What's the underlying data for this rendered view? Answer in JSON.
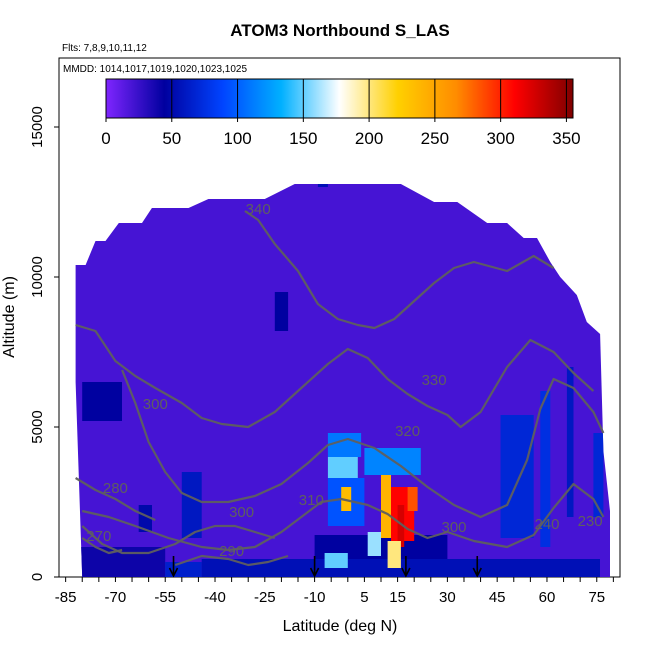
{
  "chart_data": {
    "type": "heatmap",
    "title": "ATOM3 Northbound S_LAS",
    "subtitle": "Flts: 7,8,9,10,11,12",
    "mmdd": "MMDD: 1014,1017,1019,1020,1023,1025",
    "xlabel": "Latitude (deg N)",
    "ylabel": "Altitude (m)",
    "xlim": [
      -87,
      82
    ],
    "ylim": [
      0,
      17300
    ],
    "x_ticks": [
      -85,
      -70,
      -55,
      -40,
      -25,
      -10,
      5,
      15,
      30,
      45,
      60,
      75
    ],
    "x_tick_labels": [
      "-85",
      "-70",
      "-55",
      "-40",
      "-25",
      "-10",
      "5",
      "15",
      "30",
      "45",
      "60",
      "75"
    ],
    "y_ticks": [
      0,
      5000,
      10000,
      15000
    ],
    "y_tick_labels": [
      "0",
      "5000",
      "10000",
      "15000"
    ],
    "colorbar": {
      "ticks": [
        0,
        50,
        100,
        150,
        200,
        250,
        300,
        350
      ],
      "tick_labels": [
        "0",
        "50",
        "100",
        "150",
        "200",
        "250",
        "300",
        "350"
      ],
      "max": 355,
      "colors": [
        "#7f25ff",
        "#00009f",
        "#0044ff",
        "#00b0ff",
        "#ffffff",
        "#ffd000",
        "#ff8c00",
        "#ff0000",
        "#7f0000"
      ]
    },
    "background_value": 20,
    "envelope": [
      [
        -82,
        10400
      ],
      [
        -79,
        10400
      ],
      [
        -76,
        11200
      ],
      [
        -73,
        11200
      ],
      [
        -69,
        11800
      ],
      [
        -62,
        11800
      ],
      [
        -59,
        12300
      ],
      [
        -48,
        12300
      ],
      [
        -42,
        12600
      ],
      [
        -25,
        12600
      ],
      [
        -16,
        13100
      ],
      [
        16,
        13100
      ],
      [
        26,
        12500
      ],
      [
        33,
        12500
      ],
      [
        42,
        11800
      ],
      [
        48,
        11800
      ],
      [
        53,
        11300
      ],
      [
        57,
        11300
      ],
      [
        61,
        10500
      ],
      [
        64,
        10000
      ],
      [
        69,
        9400
      ],
      [
        72,
        8500
      ],
      [
        76,
        8100
      ],
      [
        77,
        4200
      ],
      [
        79,
        2200
      ],
      [
        79,
        0
      ],
      [
        -80,
        0
      ],
      [
        -82,
        6500
      ]
    ],
    "patches": [
      {
        "lat": [
          -9,
          -6
        ],
        "alt": [
          13000,
          13500
        ],
        "value": 55
      },
      {
        "lat": [
          -82,
          -55
        ],
        "alt": [
          0,
          1000
        ],
        "value": 40
      },
      {
        "lat": [
          -55,
          -44
        ],
        "alt": [
          0,
          500
        ],
        "value": 65
      },
      {
        "lat": [
          -50,
          -44
        ],
        "alt": [
          1300,
          3500
        ],
        "value": 60
      },
      {
        "lat": [
          -44,
          76
        ],
        "alt": [
          0,
          600
        ],
        "value": 55
      },
      {
        "lat": [
          -10,
          30
        ],
        "alt": [
          600,
          1400
        ],
        "value": 45
      },
      {
        "lat": [
          -6,
          4
        ],
        "alt": [
          4000,
          4800
        ],
        "value": 110
      },
      {
        "lat": [
          -6,
          3
        ],
        "alt": [
          3300,
          4000
        ],
        "value": 150
      },
      {
        "lat": [
          -6,
          5
        ],
        "alt": [
          1700,
          3300
        ],
        "value": 95
      },
      {
        "lat": [
          -2,
          1
        ],
        "alt": [
          2200,
          3000
        ],
        "value": 235
      },
      {
        "lat": [
          5,
          22
        ],
        "alt": [
          3400,
          4300
        ],
        "value": 115
      },
      {
        "lat": [
          10,
          13
        ],
        "alt": [
          1300,
          3400
        ],
        "value": 240
      },
      {
        "lat": [
          13,
          20
        ],
        "alt": [
          1200,
          3000
        ],
        "value": 310
      },
      {
        "lat": [
          15,
          17
        ],
        "alt": [
          1000,
          2400
        ],
        "value": 325
      },
      {
        "lat": [
          18,
          21
        ],
        "alt": [
          2200,
          3000
        ],
        "value": 285
      },
      {
        "lat": [
          12,
          16
        ],
        "alt": [
          300,
          1200
        ],
        "value": 200
      },
      {
        "lat": [
          6,
          10
        ],
        "alt": [
          700,
          1500
        ],
        "value": 160
      },
      {
        "lat": [
          -7,
          0
        ],
        "alt": [
          300,
          800
        ],
        "value": 150
      },
      {
        "lat": [
          46,
          56
        ],
        "alt": [
          1300,
          5400
        ],
        "value": 70
      },
      {
        "lat": [
          58,
          61
        ],
        "alt": [
          1000,
          6200
        ],
        "value": 75
      },
      {
        "lat": [
          66,
          68
        ],
        "alt": [
          2000,
          7000
        ],
        "value": 60
      },
      {
        "lat": [
          74,
          77
        ],
        "alt": [
          2000,
          4800
        ],
        "value": 70
      },
      {
        "lat": [
          -22,
          -18
        ],
        "alt": [
          8200,
          9500
        ],
        "value": 45
      },
      {
        "lat": [
          -80,
          -68
        ],
        "alt": [
          5200,
          6500
        ],
        "value": 45
      },
      {
        "lat": [
          -63,
          -59
        ],
        "alt": [
          1500,
          2400
        ],
        "value": 50
      }
    ],
    "contours": [
      {
        "label": "340",
        "points": [
          [
            -31,
            12200
          ],
          [
            -27,
            11900
          ],
          [
            -22,
            11100
          ],
          [
            -15,
            10200
          ],
          [
            -9,
            9100
          ],
          [
            -3,
            8600
          ],
          [
            3,
            8400
          ],
          [
            8,
            8300
          ],
          [
            14,
            8600
          ],
          [
            20,
            9200
          ],
          [
            26,
            9800
          ],
          [
            32,
            10300
          ],
          [
            38,
            10500
          ],
          [
            48,
            10200
          ],
          [
            56,
            10700
          ],
          [
            62,
            10300
          ]
        ]
      },
      {
        "label": "330",
        "points": [
          [
            -82,
            8400
          ],
          [
            -76,
            8200
          ],
          [
            -70,
            7200
          ],
          [
            -64,
            6700
          ],
          [
            -58,
            6300
          ],
          [
            -50,
            5800
          ],
          [
            -44,
            5300
          ],
          [
            -38,
            5100
          ],
          [
            -30,
            5000
          ],
          [
            -22,
            5500
          ],
          [
            -14,
            6300
          ],
          [
            -6,
            7100
          ],
          [
            0,
            7600
          ],
          [
            6,
            7300
          ],
          [
            12,
            6600
          ],
          [
            18,
            6100
          ],
          [
            24,
            5700
          ],
          [
            30,
            5400
          ],
          [
            34,
            5000
          ],
          [
            40,
            5500
          ],
          [
            48,
            7000
          ],
          [
            55,
            7900
          ],
          [
            62,
            7500
          ],
          [
            68,
            6800
          ],
          [
            74,
            6200
          ]
        ]
      },
      {
        "label": "320",
        "points": [
          [
            -68,
            6900
          ],
          [
            -64,
            5800
          ],
          [
            -60,
            4500
          ],
          [
            -55,
            3500
          ],
          [
            -50,
            2800
          ],
          [
            -44,
            2500
          ],
          [
            -36,
            2500
          ],
          [
            -28,
            2700
          ],
          [
            -20,
            3100
          ],
          [
            -12,
            3800
          ],
          [
            -6,
            4400
          ],
          [
            0,
            4600
          ],
          [
            8,
            4300
          ],
          [
            16,
            3700
          ],
          [
            24,
            3000
          ],
          [
            32,
            2400
          ],
          [
            40,
            2000
          ],
          [
            48,
            2400
          ],
          [
            54,
            3900
          ],
          [
            58,
            5600
          ],
          [
            62,
            6600
          ],
          [
            68,
            6300
          ],
          [
            74,
            5500
          ],
          [
            77,
            4800
          ]
        ]
      },
      {
        "label": "310",
        "points": [
          [
            -80,
            2200
          ],
          [
            -72,
            2000
          ],
          [
            -64,
            1700
          ],
          [
            -54,
            1300
          ],
          [
            -44,
            1000
          ],
          [
            -36,
            900
          ],
          [
            -28,
            1000
          ],
          [
            -20,
            1500
          ],
          [
            -14,
            2000
          ],
          [
            -8,
            2500
          ],
          [
            -2,
            2600
          ],
          [
            6,
            2400
          ],
          [
            12,
            2100
          ],
          [
            18,
            1600
          ],
          [
            24,
            1300
          ],
          [
            30,
            1500
          ],
          [
            38,
            1200
          ],
          [
            48,
            1000
          ],
          [
            56,
            1400
          ],
          [
            62,
            2300
          ],
          [
            68,
            3100
          ],
          [
            74,
            2600
          ],
          [
            77,
            2000
          ]
        ]
      },
      {
        "label": "300",
        "points": [
          [
            -80,
            1700
          ],
          [
            -74,
            1100
          ],
          [
            -68,
            800
          ],
          [
            -60,
            800
          ],
          [
            -52,
            1100
          ],
          [
            -46,
            1500
          ],
          [
            -40,
            1700
          ],
          [
            -34,
            1700
          ],
          [
            -28,
            1500
          ],
          [
            -22,
            1300
          ]
        ]
      },
      {
        "label": "290",
        "points": [
          [
            -52,
            400
          ],
          [
            -44,
            700
          ],
          [
            -36,
            600
          ],
          [
            -30,
            400
          ],
          [
            -24,
            500
          ],
          [
            -18,
            700
          ]
        ]
      },
      {
        "label": "280",
        "points": [
          [
            -82,
            3300
          ],
          [
            -76,
            2900
          ],
          [
            -70,
            2600
          ],
          [
            -64,
            2200
          ],
          [
            -58,
            1900
          ]
        ]
      },
      {
        "label": "270",
        "points": [
          [
            -80,
            1300
          ],
          [
            -76,
            1000
          ],
          [
            -72,
            800
          ],
          [
            -68,
            900
          ]
        ]
      }
    ],
    "contour_labels": [
      {
        "text": "340",
        "lat": -27,
        "alt": 12100
      },
      {
        "text": "330",
        "lat": 26,
        "alt": 6400
      },
      {
        "text": "320",
        "lat": 18,
        "alt": 4700
      },
      {
        "text": "310",
        "lat": -11,
        "alt": 2400
      },
      {
        "text": "300",
        "lat": -32,
        "alt": 2000
      },
      {
        "text": "290",
        "lat": -35,
        "alt": 700
      },
      {
        "text": "280",
        "lat": -70,
        "alt": 2800
      },
      {
        "text": "270",
        "lat": -75,
        "alt": 1200
      },
      {
        "text": "300",
        "lat": -58,
        "alt": 5600
      },
      {
        "text": "300",
        "lat": 32,
        "alt": 1500
      },
      {
        "text": "240",
        "lat": 60,
        "alt": 1600
      },
      {
        "text": "230",
        "lat": 73,
        "alt": 1700
      }
    ],
    "arrows_lat": [
      -52.5,
      -10,
      17.5,
      39
    ]
  }
}
